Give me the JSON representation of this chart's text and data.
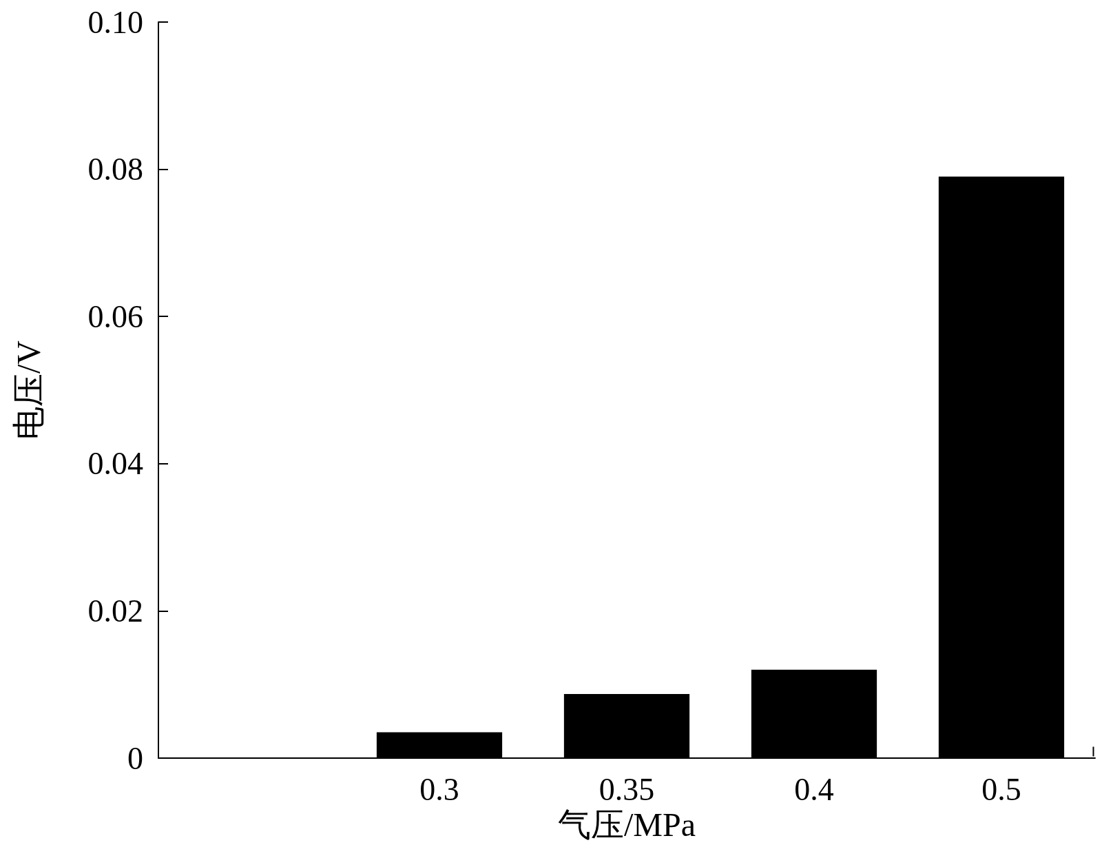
{
  "chart_data": {
    "type": "bar",
    "xlabel": "气压/MPa",
    "ylabel": "电压/V",
    "categories": [
      null,
      "0.3",
      "0.35",
      "0.4",
      "0.5"
    ],
    "values": [
      null,
      0.0035,
      0.0087,
      0.012,
      0.079
    ],
    "color": "#000000",
    "ylim": [
      0,
      0.1
    ],
    "yticks": [
      0,
      0.02,
      0.04,
      0.06,
      0.08,
      {
        "value": 0.1,
        "label": "0.10"
      }
    ],
    "grid": false
  }
}
